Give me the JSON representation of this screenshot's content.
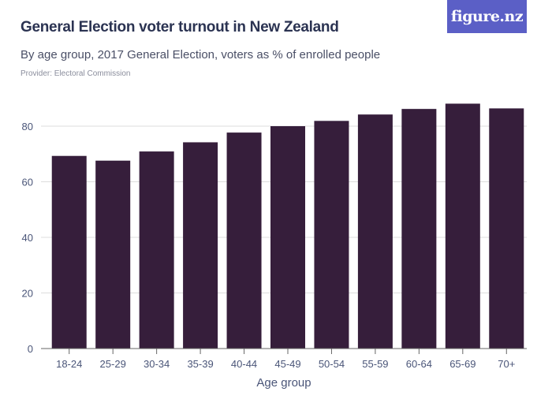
{
  "header": {
    "title": "General Election voter turnout in New Zealand",
    "subtitle": "By age group, 2017 General Election, voters as % of enrolled people",
    "provider": "Provider: Electoral Commission",
    "logo": "figure.nz"
  },
  "colors": {
    "bar": "#361e3b",
    "logo_bg": "#5b5fc6",
    "grid": "#dddddd"
  },
  "chart_data": {
    "type": "bar",
    "title": "General Election voter turnout in New Zealand",
    "subtitle": "By age group, 2017 General Election, voters as % of enrolled people",
    "xlabel": "Age group",
    "ylabel": "",
    "categories": [
      "18-24",
      "25-29",
      "30-34",
      "35-39",
      "40-44",
      "45-49",
      "50-54",
      "55-59",
      "60-64",
      "65-69",
      "70+"
    ],
    "values": [
      69.3,
      67.6,
      70.9,
      74.2,
      77.7,
      80.0,
      81.9,
      84.2,
      86.2,
      88.1,
      86.4
    ],
    "ylim": [
      0,
      90
    ],
    "yticks": [
      0,
      20,
      40,
      60,
      80
    ],
    "grid": true,
    "legend": "none"
  }
}
